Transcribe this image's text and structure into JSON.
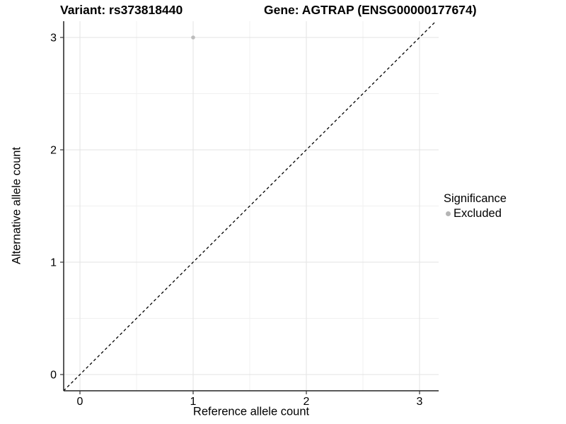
{
  "title": {
    "variant": "Variant: rs373818440",
    "gene": "Gene: AGTRAP (ENSG00000177674)"
  },
  "chart_data": {
    "type": "scatter",
    "title": "Variant: rs373818440 — Gene: AGTRAP (ENSG00000177674)",
    "xlabel": "Reference allele count",
    "ylabel": "Alternative allele count",
    "x_ticks": [
      0,
      1,
      2,
      3
    ],
    "y_ticks": [
      0,
      1,
      2,
      3
    ],
    "xlim": [
      -0.15,
      3.17
    ],
    "ylim": [
      -0.15,
      3.15
    ],
    "grid": "major+minor",
    "series": [
      {
        "name": "Excluded",
        "color": "#bdbdbd",
        "points": [
          {
            "x": 1,
            "y": 3
          }
        ]
      }
    ],
    "annotations": [
      {
        "type": "reference-line",
        "equation": "y = x",
        "style": "dashed",
        "color": "#000000"
      }
    ],
    "legend": {
      "title": "Significance",
      "position": "right",
      "entries": [
        {
          "label": "Excluded",
          "color": "#b5b5b5"
        }
      ]
    }
  },
  "colors": {
    "background": "#ffffff",
    "grid_major": "#e3e3e3",
    "grid_minor": "#f0f0f0",
    "axis_line": "#222222",
    "tick_mark": "#333333",
    "text": "#000000",
    "point": "#bdbdbd"
  }
}
